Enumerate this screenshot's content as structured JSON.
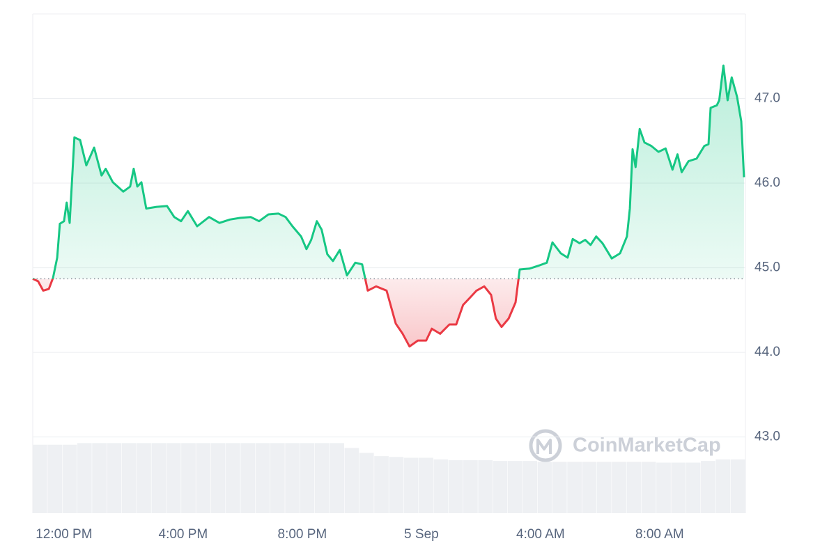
{
  "chart_data": {
    "type": "area-line",
    "x": [
      -1.05,
      -0.87,
      -0.7,
      -0.51,
      -0.37,
      -0.23,
      -0.14,
      0,
      0.09,
      0.19,
      0.35,
      0.54,
      0.75,
      1.01,
      1.26,
      1.4,
      1.64,
      1.99,
      2.22,
      2.34,
      2.46,
      2.6,
      2.76,
      3.11,
      3.46,
      3.7,
      3.93,
      4.16,
      4.47,
      4.87,
      5.22,
      5.57,
      5.92,
      6.27,
      6.55,
      6.86,
      7.2,
      7.44,
      7.67,
      7.96,
      8.14,
      8.3,
      8.49,
      8.65,
      8.84,
      9.03,
      9.26,
      9.5,
      9.78,
      10.01,
      10.2,
      10.48,
      10.83,
      11.14,
      11.37,
      11.6,
      11.88,
      12.16,
      12.35,
      12.63,
      12.94,
      13.17,
      13.4,
      13.64,
      13.85,
      14.11,
      14.34,
      14.5,
      14.69,
      14.93,
      15.16,
      15.3,
      15.63,
      15.98,
      16.21,
      16.4,
      16.68,
      16.91,
      17.08,
      17.31,
      17.5,
      17.68,
      17.87,
      18.08,
      18.39,
      18.67,
      18.9,
      19.0,
      19.09,
      19.19,
      19.33,
      19.49,
      19.72,
      19.96,
      20.2,
      20.43,
      20.6,
      20.74,
      20.97,
      21.24,
      21.5,
      21.64,
      21.71,
      21.92,
      22.0,
      22.14,
      22.28,
      22.42,
      22.6,
      22.74,
      22.83
    ],
    "values": [
      44.87,
      44.84,
      44.73,
      44.75,
      44.88,
      45.12,
      45.52,
      45.55,
      45.77,
      45.53,
      46.54,
      46.51,
      46.21,
      46.42,
      46.09,
      46.17,
      46.01,
      45.9,
      45.96,
      46.17,
      45.96,
      46.01,
      45.7,
      45.72,
      45.73,
      45.6,
      45.55,
      45.67,
      45.49,
      45.6,
      45.53,
      45.57,
      45.59,
      45.6,
      45.55,
      45.63,
      45.64,
      45.6,
      45.49,
      45.37,
      45.22,
      45.33,
      45.55,
      45.45,
      45.16,
      45.08,
      45.21,
      44.91,
      45.06,
      45.04,
      44.73,
      44.78,
      44.73,
      44.34,
      44.22,
      44.07,
      44.14,
      44.14,
      44.28,
      44.22,
      44.33,
      44.33,
      44.56,
      44.65,
      44.73,
      44.78,
      44.68,
      44.4,
      44.3,
      44.4,
      44.59,
      44.98,
      44.99,
      45.03,
      45.06,
      45.3,
      45.17,
      45.12,
      45.34,
      45.29,
      45.33,
      45.27,
      45.37,
      45.29,
      45.11,
      45.17,
      45.37,
      45.7,
      46.4,
      46.19,
      46.64,
      46.48,
      46.44,
      46.37,
      46.41,
      46.16,
      46.34,
      46.13,
      46.26,
      46.29,
      46.44,
      46.46,
      46.89,
      46.92,
      46.98,
      47.39,
      46.98,
      47.25,
      47.02,
      46.73,
      46.07
    ],
    "reference_line": 44.87,
    "color_up": "#16c784",
    "color_down": "#ea3943",
    "xlim": [
      -1.05,
      22.88
    ],
    "xticks": [
      {
        "value": 0,
        "label": "12:00 PM"
      },
      {
        "value": 4,
        "label": "4:00 PM"
      },
      {
        "value": 8,
        "label": "8:00 PM"
      },
      {
        "value": 12,
        "label": "5 Sep"
      },
      {
        "value": 16,
        "label": "4:00 AM"
      },
      {
        "value": 20,
        "label": "8:00 AM"
      }
    ],
    "ylim": [
      42.1,
      48.0
    ],
    "yticks": [
      {
        "value": 43,
        "label": "43.0"
      },
      {
        "value": 44,
        "label": "44.0"
      },
      {
        "value": 45,
        "label": "45.0"
      },
      {
        "value": 46,
        "label": "46.0"
      },
      {
        "value": 47,
        "label": "47.0"
      }
    ],
    "grid": true,
    "volume": {
      "color": "#eef0f3",
      "ylim": [
        0,
        100
      ],
      "values": [
        84,
        84,
        84,
        86,
        86,
        86,
        86,
        86,
        86,
        86,
        86,
        86,
        86,
        86,
        86,
        86,
        86,
        86,
        86,
        86,
        86,
        80,
        74,
        70,
        69,
        68,
        68,
        66,
        65,
        65,
        65,
        64,
        64,
        64,
        63,
        63,
        63,
        63,
        63,
        63,
        63,
        63,
        62,
        62,
        62,
        64,
        66,
        66
      ]
    },
    "watermark": "CoinMarketCap"
  }
}
